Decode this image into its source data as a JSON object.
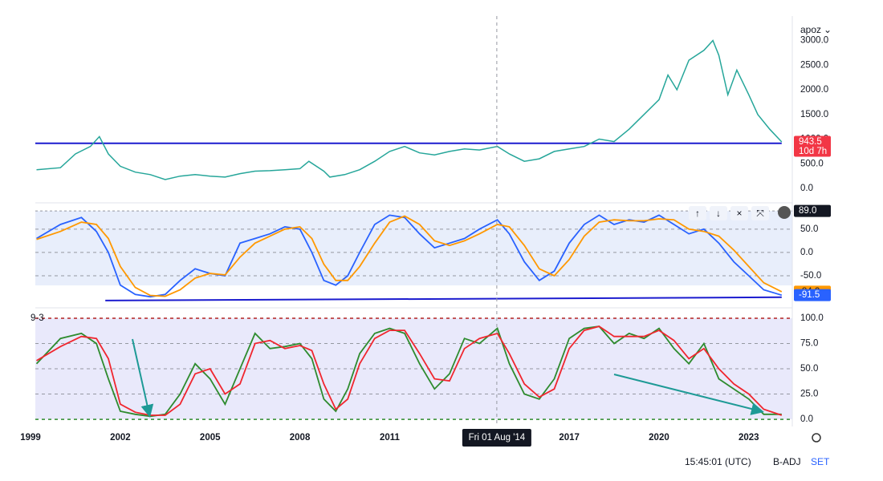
{
  "symbol_menu": "apoz",
  "time": "15:45:01 (UTC)",
  "adjust": "B-ADJ",
  "session": "SET",
  "crosshair": {
    "x": 2014.58,
    "label": "Fri 01 Aug '14"
  },
  "xlim": [
    1999.16,
    2024.4
  ],
  "chart_data": [
    {
      "type": "line",
      "color": "#26a69a",
      "x": [
        1999.2,
        2000,
        2000.5,
        2001,
        2001.3,
        2001.6,
        2002,
        2002.5,
        2003,
        2003.5,
        2004,
        2004.5,
        2005,
        2005.5,
        2006,
        2006.5,
        2007,
        2007.5,
        2008,
        2008.3,
        2008.8,
        2009,
        2009.5,
        2010,
        2010.5,
        2011,
        2011.5,
        2012,
        2012.5,
        2013,
        2013.5,
        2014,
        2014.6,
        2015,
        2015.5,
        2016,
        2016.5,
        2017,
        2017.5,
        2018,
        2018.5,
        2019,
        2019.5,
        2020,
        2020.3,
        2020.6,
        2021,
        2021.5,
        2021.8,
        2022,
        2022.3,
        2022.6,
        2023,
        2023.3,
        2023.7,
        2024.1
      ],
      "series": [
        {
          "color": "#26a69a",
          "values": [
            380,
            420,
            700,
            850,
            1050,
            700,
            450,
            330,
            280,
            180,
            250,
            280,
            250,
            230,
            300,
            350,
            360,
            380,
            400,
            550,
            350,
            230,
            280,
            380,
            550,
            750,
            850,
            720,
            680,
            750,
            800,
            780,
            850,
            700,
            550,
            600,
            750,
            800,
            850,
            1000,
            950,
            1200,
            1500,
            1800,
            2300,
            2000,
            2600,
            2800,
            3000,
            2700,
            1900,
            2400,
            1900,
            1500,
            1200,
            943.5
          ]
        }
      ],
      "countdown": "10d 7h",
      "trendline": {
        "x": [
          1999.16,
          2024.1
        ],
        "values": [
          915,
          915
        ],
        "color": "#1c1ccf"
      },
      "ylim": [
        -276,
        3415
      ],
      "yticks": [
        {
          "value": 0,
          "label": "0.0"
        },
        {
          "value": 500,
          "label": "500.0"
        },
        {
          "value": 1000,
          "label": "1000.0"
        },
        {
          "value": 1500,
          "label": "1500.0"
        },
        {
          "value": 2000,
          "label": "2000.0"
        },
        {
          "value": 2500,
          "label": "2500.0"
        },
        {
          "value": 3000,
          "label": "3000.0"
        }
      ]
    },
    {
      "type": "line",
      "x": [
        1999.2,
        2000,
        2000.7,
        2001.2,
        2001.6,
        2002,
        2002.5,
        2003,
        2003.5,
        2004,
        2004.5,
        2005,
        2005.5,
        2006,
        2006.5,
        2007,
        2007.5,
        2008,
        2008.4,
        2008.8,
        2009.2,
        2009.6,
        2010,
        2010.5,
        2011,
        2011.5,
        2012,
        2012.5,
        2013,
        2013.5,
        2014,
        2014.6,
        2015,
        2015.5,
        2016,
        2016.5,
        2017,
        2017.5,
        2018,
        2018.5,
        2019,
        2019.5,
        2020,
        2020.5,
        2021,
        2021.5,
        2022,
        2022.5,
        2023,
        2023.5,
        2024.1
      ],
      "series": [
        {
          "color": "#2962ff",
          "values": [
            30,
            60,
            75,
            45,
            0,
            -70,
            -90,
            -95,
            -90,
            -60,
            -35,
            -45,
            -50,
            20,
            30,
            40,
            55,
            50,
            0,
            -60,
            -70,
            -50,
            0,
            60,
            80,
            75,
            40,
            10,
            20,
            30,
            50,
            70,
            40,
            -20,
            -60,
            -40,
            20,
            60,
            80,
            60,
            70,
            65,
            80,
            60,
            40,
            50,
            20,
            -20,
            -50,
            -80,
            -91.5
          ]
        },
        {
          "color": "#ff9800",
          "values": [
            28,
            45,
            65,
            60,
            30,
            -30,
            -75,
            -92,
            -94,
            -80,
            -55,
            -45,
            -48,
            -10,
            20,
            35,
            50,
            55,
            30,
            -25,
            -60,
            -60,
            -30,
            20,
            65,
            78,
            60,
            25,
            15,
            25,
            40,
            60,
            55,
            15,
            -35,
            -50,
            -15,
            35,
            65,
            70,
            68,
            68,
            72,
            70,
            50,
            45,
            35,
            5,
            -30,
            -65,
            -84.2
          ]
        }
      ],
      "level": {
        "value": 89,
        "label": "89.0"
      },
      "trendline": {
        "x": [
          2001.5,
          2024.1
        ],
        "values": [
          -103,
          -96
        ],
        "color": "#1c1ccf"
      },
      "ylim": [
        -117,
        103
      ],
      "yticks": [
        {
          "value": -50,
          "label": "-50.0"
        },
        {
          "value": 0,
          "label": "0.0"
        },
        {
          "value": 50,
          "label": "50.0"
        }
      ]
    },
    {
      "type": "line",
      "label": "9·3",
      "x": [
        1999.2,
        2000,
        2000.7,
        2001.2,
        2001.6,
        2002,
        2002.5,
        2003,
        2003.5,
        2004,
        2004.5,
        2005,
        2005.5,
        2006,
        2006.5,
        2007,
        2007.5,
        2008,
        2008.4,
        2008.8,
        2009.2,
        2009.6,
        2010,
        2010.5,
        2011,
        2011.5,
        2012,
        2012.5,
        2013,
        2013.5,
        2014,
        2014.6,
        2015,
        2015.5,
        2016,
        2016.5,
        2017,
        2017.5,
        2018,
        2018.5,
        2019,
        2019.5,
        2020,
        2020.5,
        2021,
        2021.5,
        2022,
        2022.5,
        2023,
        2023.5,
        2024.1
      ],
      "series": [
        {
          "color": "#2e8b2e",
          "values": [
            55,
            80,
            85,
            75,
            40,
            8,
            5,
            3,
            5,
            25,
            55,
            40,
            15,
            50,
            85,
            70,
            72,
            75,
            60,
            20,
            8,
            30,
            65,
            85,
            90,
            85,
            55,
            30,
            45,
            80,
            75,
            90,
            55,
            25,
            20,
            40,
            80,
            90,
            92,
            75,
            85,
            80,
            90,
            70,
            55,
            75,
            40,
            30,
            20,
            5,
            5
          ]
        },
        {
          "color": "#f0262e",
          "values": [
            58,
            72,
            82,
            80,
            60,
            15,
            7,
            4,
            4,
            15,
            45,
            50,
            25,
            35,
            75,
            78,
            70,
            73,
            68,
            35,
            10,
            20,
            55,
            80,
            88,
            88,
            65,
            40,
            38,
            70,
            80,
            85,
            65,
            35,
            22,
            30,
            70,
            88,
            92,
            82,
            82,
            82,
            88,
            78,
            60,
            70,
            50,
            35,
            25,
            10,
            4
          ]
        }
      ],
      "ylim": [
        -5.5,
        109.5
      ],
      "yticks": [
        {
          "value": 0,
          "label": "0.0"
        },
        {
          "value": 25,
          "label": "25.0"
        },
        {
          "value": 50,
          "label": "50.0"
        },
        {
          "value": 75,
          "label": "75.0"
        },
        {
          "value": 100,
          "label": "100.0"
        }
      ],
      "xticks": [
        {
          "value": 1999,
          "label": "1999"
        },
        2002,
        2005,
        2008,
        2011,
        2017,
        2020,
        2023
      ]
    }
  ]
}
